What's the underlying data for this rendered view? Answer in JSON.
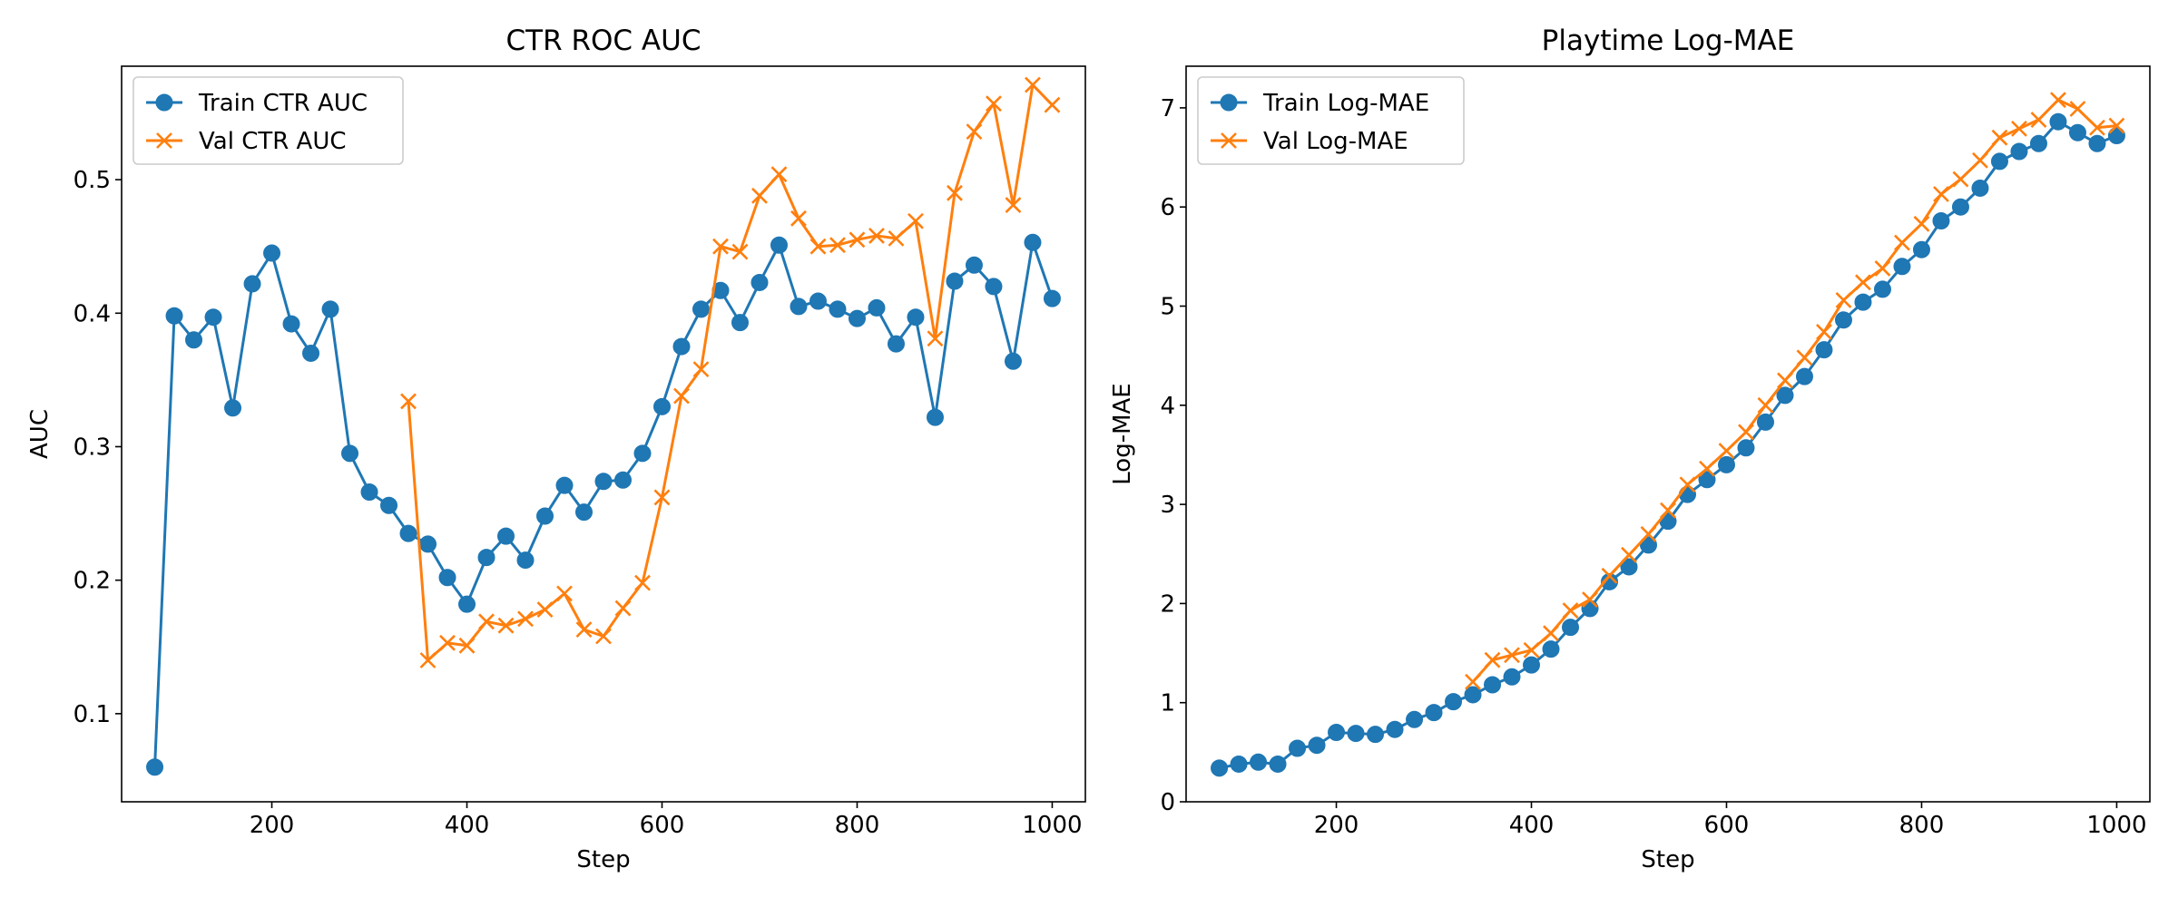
{
  "colors": {
    "train": "#1f77b4",
    "val": "#ff7f0e",
    "axis": "#000000",
    "legend_border": "#cccccc",
    "background": "#ffffff"
  },
  "chart_data": [
    {
      "type": "line",
      "title": "CTR ROC AUC",
      "xlabel": "Step",
      "ylabel": "AUC",
      "xlim": [
        46,
        1034
      ],
      "ylim": [
        0.034,
        0.585
      ],
      "xticks": [
        200,
        400,
        600,
        800,
        1000
      ],
      "xtick_labels": [
        "200",
        "400",
        "600",
        "800",
        "1000"
      ],
      "yticks": [
        0.1,
        0.2,
        0.3,
        0.4,
        0.5
      ],
      "ytick_labels": [
        "0.1",
        "0.2",
        "0.3",
        "0.4",
        "0.5"
      ],
      "grid": false,
      "legend_position": "upper-left",
      "series": [
        {
          "name": "Train CTR AUC",
          "marker": "circle",
          "color": "#1f77b4",
          "x": [
            80,
            100,
            120,
            140,
            160,
            180,
            200,
            220,
            240,
            260,
            280,
            300,
            320,
            340,
            360,
            380,
            400,
            420,
            440,
            460,
            480,
            500,
            520,
            540,
            560,
            580,
            600,
            620,
            640,
            660,
            680,
            700,
            720,
            740,
            760,
            780,
            800,
            820,
            840,
            860,
            880,
            900,
            920,
            940,
            960,
            980,
            1000
          ],
          "y": [
            0.06,
            0.398,
            0.38,
            0.397,
            0.329,
            0.422,
            0.445,
            0.392,
            0.37,
            0.403,
            0.295,
            0.266,
            0.256,
            0.235,
            0.227,
            0.202,
            0.182,
            0.217,
            0.233,
            0.215,
            0.248,
            0.271,
            0.251,
            0.274,
            0.275,
            0.295,
            0.33,
            0.375,
            0.403,
            0.417,
            0.393,
            0.423,
            0.451,
            0.405,
            0.409,
            0.403,
            0.396,
            0.404,
            0.377,
            0.397,
            0.322,
            0.424,
            0.436,
            0.42,
            0.364,
            0.453,
            0.411
          ]
        },
        {
          "name": "Val CTR AUC",
          "marker": "x",
          "color": "#ff7f0e",
          "x": [
            340,
            360,
            380,
            400,
            420,
            440,
            460,
            480,
            500,
            520,
            540,
            560,
            580,
            600,
            620,
            640,
            660,
            680,
            700,
            720,
            740,
            760,
            780,
            800,
            820,
            840,
            860,
            880,
            900,
            920,
            940,
            960,
            980,
            1000
          ],
          "y": [
            0.334,
            0.14,
            0.153,
            0.151,
            0.169,
            0.166,
            0.171,
            0.178,
            0.19,
            0.163,
            0.158,
            0.179,
            0.198,
            0.262,
            0.338,
            0.358,
            0.45,
            0.446,
            0.488,
            0.504,
            0.471,
            0.45,
            0.451,
            0.455,
            0.458,
            0.456,
            0.469,
            0.381,
            0.49,
            0.536,
            0.557,
            0.481,
            0.571,
            0.556
          ]
        }
      ]
    },
    {
      "type": "line",
      "title": "Playtime Log-MAE",
      "xlabel": "Step",
      "ylabel": "Log-MAE",
      "xlim": [
        46,
        1034
      ],
      "ylim": [
        0,
        7.42
      ],
      "xticks": [
        200,
        400,
        600,
        800,
        1000
      ],
      "xtick_labels": [
        "200",
        "400",
        "600",
        "800",
        "1000"
      ],
      "yticks": [
        0,
        1,
        2,
        3,
        4,
        5,
        6,
        7
      ],
      "ytick_labels": [
        "0",
        "1",
        "2",
        "3",
        "4",
        "5",
        "6",
        "7"
      ],
      "grid": false,
      "legend_position": "upper-left",
      "series": [
        {
          "name": "Train Log-MAE",
          "marker": "circle",
          "color": "#1f77b4",
          "x": [
            80,
            100,
            120,
            140,
            160,
            180,
            200,
            220,
            240,
            260,
            280,
            300,
            320,
            340,
            360,
            380,
            400,
            420,
            440,
            460,
            480,
            500,
            520,
            540,
            560,
            580,
            600,
            620,
            640,
            660,
            680,
            700,
            720,
            740,
            760,
            780,
            800,
            820,
            840,
            860,
            880,
            900,
            920,
            940,
            960,
            980,
            1000
          ],
          "y": [
            0.34,
            0.38,
            0.4,
            0.38,
            0.54,
            0.57,
            0.7,
            0.69,
            0.68,
            0.73,
            0.83,
            0.9,
            1.01,
            1.08,
            1.18,
            1.26,
            1.38,
            1.54,
            1.76,
            1.95,
            2.22,
            2.37,
            2.59,
            2.83,
            3.1,
            3.25,
            3.4,
            3.57,
            3.83,
            4.1,
            4.29,
            4.56,
            4.86,
            5.04,
            5.17,
            5.4,
            5.57,
            5.86,
            6.0,
            6.19,
            6.46,
            6.56,
            6.64,
            6.86,
            6.75,
            6.64,
            6.72
          ]
        },
        {
          "name": "Val Log-MAE",
          "marker": "x",
          "color": "#ff7f0e",
          "x": [
            340,
            360,
            380,
            400,
            420,
            440,
            460,
            480,
            500,
            520,
            540,
            560,
            580,
            600,
            620,
            640,
            660,
            680,
            700,
            720,
            740,
            760,
            780,
            800,
            820,
            840,
            860,
            880,
            900,
            920,
            940,
            960,
            980,
            1000
          ],
          "y": [
            1.21,
            1.43,
            1.48,
            1.53,
            1.7,
            1.93,
            2.04,
            2.28,
            2.49,
            2.7,
            2.94,
            3.2,
            3.36,
            3.54,
            3.73,
            4.0,
            4.25,
            4.48,
            4.74,
            5.06,
            5.24,
            5.38,
            5.64,
            5.83,
            6.13,
            6.28,
            6.47,
            6.7,
            6.79,
            6.88,
            7.08,
            6.99,
            6.8,
            6.82
          ]
        }
      ]
    }
  ]
}
